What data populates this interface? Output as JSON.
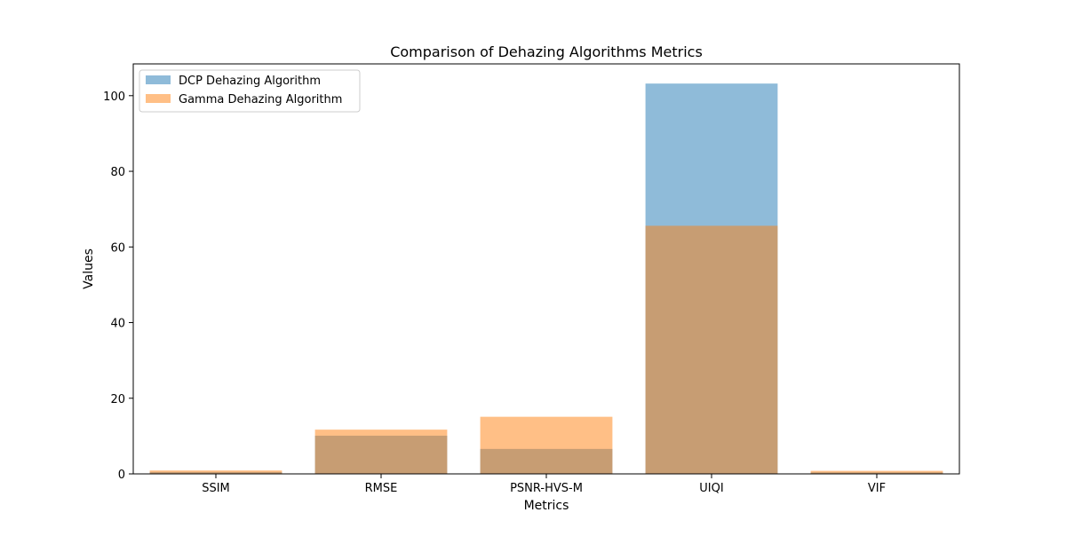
{
  "chart_data": {
    "type": "bar",
    "title": "Comparison of Dehazing Algorithms Metrics",
    "xlabel": "Metrics",
    "ylabel": "Values",
    "categories": [
      "SSIM",
      "RMSE",
      "PSNR-HVS-M",
      "UIQI",
      "VIF"
    ],
    "series": [
      {
        "name": "DCP Dehazing Algorithm",
        "color": "#1f77b4",
        "opacity": 0.5,
        "values": [
          0.5,
          10.1,
          6.6,
          103.2,
          0.4
        ]
      },
      {
        "name": "Gamma Dehazing Algorithm",
        "color": "#ff7f0e",
        "opacity": 0.5,
        "values": [
          0.9,
          11.7,
          15.1,
          65.6,
          0.8
        ]
      }
    ],
    "ylim": [
      0,
      108.4
    ],
    "yticks": [
      0,
      20,
      40,
      60,
      80,
      100
    ],
    "grid": false,
    "legend_position": "top-left"
  }
}
